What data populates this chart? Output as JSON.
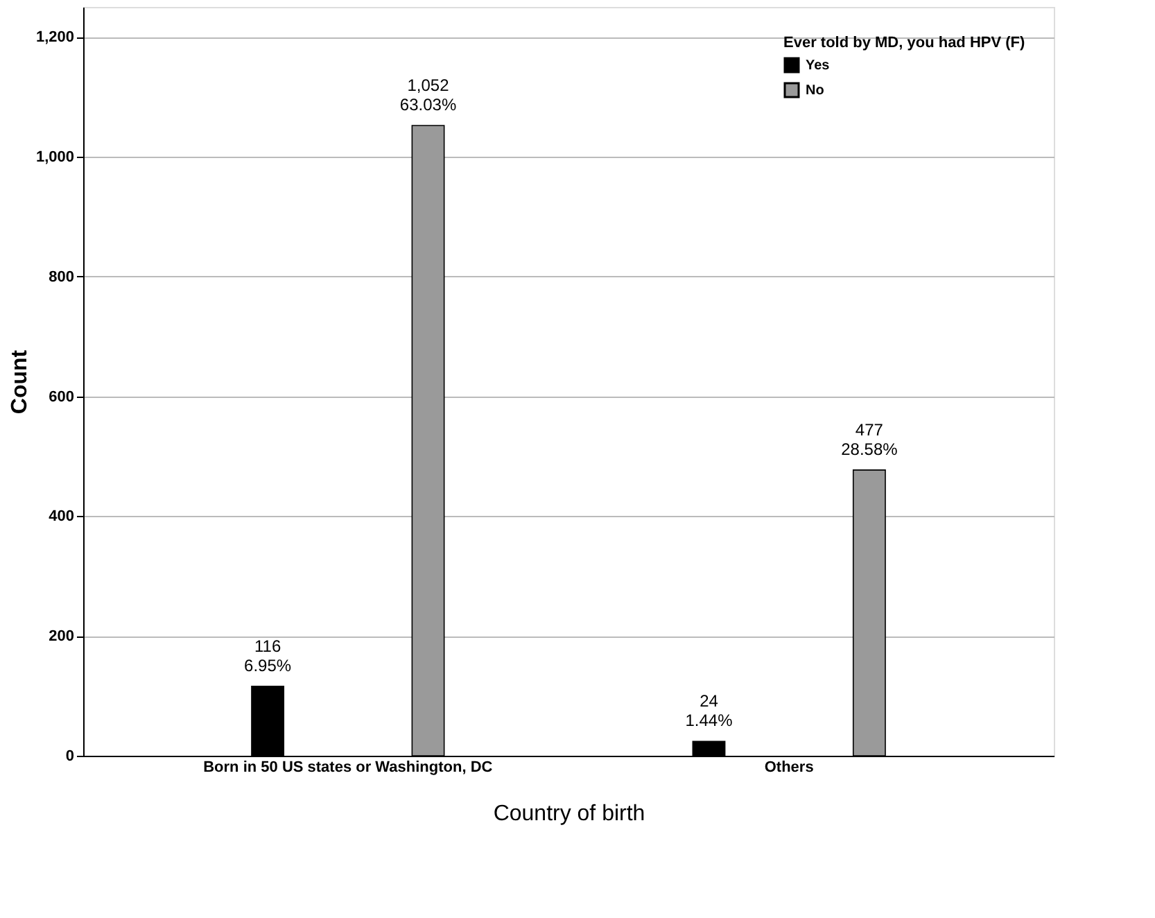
{
  "chart_data": {
    "type": "bar",
    "xlabel": "Country of birth",
    "ylabel": "Count",
    "legend_title": "Ever told by MD, you had HPV (F)",
    "categories": [
      "Born in 50 US states or Washington, DC",
      "Others"
    ],
    "series": [
      {
        "name": "Yes",
        "color": "#000000",
        "values": [
          116,
          24
        ],
        "value_labels": [
          "116\n6.95%",
          "24\n1.44%"
        ]
      },
      {
        "name": "No",
        "color": "#9a9a9a",
        "values": [
          1052,
          477
        ],
        "value_labels": [
          "1,052\n63.03%",
          "477\n28.58%"
        ]
      }
    ],
    "ylim": [
      0,
      1250
    ],
    "yticks": [
      0,
      200,
      400,
      600,
      800,
      {
        "value": 1000,
        "label": "1,000"
      },
      {
        "value": 1200,
        "label": "1,200"
      }
    ],
    "grid": "y",
    "legend": "top right"
  }
}
